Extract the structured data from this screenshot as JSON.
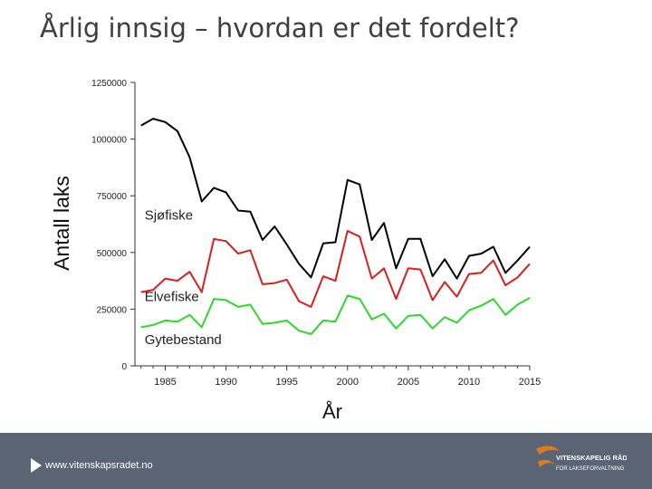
{
  "slide": {
    "title": "Årlig innsig – hvordan er det fordelt?"
  },
  "footer": {
    "url": "www.vitenskapsradet.no",
    "logo_line1": "VITENSKAPELIG RÅD",
    "logo_line2": "FOR LAKSEFORVALTNING",
    "background_color": "#5a6475"
  },
  "chart_data": {
    "type": "line",
    "xlabel": "År",
    "ylabel": "Antall laks",
    "xlim": [
      1982.5,
      2015
    ],
    "ylim": [
      0,
      1250000
    ],
    "x_ticks": [
      1985,
      1990,
      1995,
      2000,
      2005,
      2010,
      2015
    ],
    "y_ticks": [
      0,
      250000,
      500000,
      750000,
      1000000,
      1250000
    ],
    "y_tick_labels": [
      "0",
      "250000",
      "500000",
      "750000",
      "1000000",
      "1250000"
    ],
    "grid": false,
    "legend": "inline labels",
    "x": [
      1983,
      1984,
      1985,
      1986,
      1987,
      1988,
      1989,
      1990,
      1991,
      1992,
      1993,
      1994,
      1995,
      1996,
      1997,
      1998,
      1999,
      2000,
      2001,
      2002,
      2003,
      2004,
      2005,
      2006,
      2007,
      2008,
      2009,
      2010,
      2011,
      2012,
      2013,
      2014,
      2015
    ],
    "series": [
      {
        "name": "Sjøfiske",
        "color": "#000000",
        "label_x": 1983.3,
        "label_y": 645000,
        "values": [
          1060000,
          1090000,
          1075000,
          1035000,
          920000,
          725000,
          785000,
          765000,
          685000,
          680000,
          555000,
          615000,
          535000,
          450000,
          390000,
          540000,
          545000,
          820000,
          800000,
          555000,
          630000,
          430000,
          560000,
          560000,
          395000,
          470000,
          385000,
          485000,
          495000,
          525000,
          410000,
          465000,
          525000
        ]
      },
      {
        "name": "Elvefiske",
        "color": "#d62020",
        "label_x": 1983.3,
        "label_y": 285000,
        "values": [
          325000,
          335000,
          385000,
          375000,
          415000,
          325000,
          560000,
          550000,
          495000,
          510000,
          360000,
          365000,
          380000,
          285000,
          260000,
          395000,
          375000,
          595000,
          570000,
          385000,
          430000,
          295000,
          430000,
          425000,
          290000,
          370000,
          305000,
          405000,
          410000,
          465000,
          355000,
          390000,
          450000
        ]
      },
      {
        "name": "Gytebestand",
        "color": "#2fd62f",
        "label_x": 1983.3,
        "label_y": 95000,
        "values": [
          170000,
          180000,
          200000,
          195000,
          225000,
          170000,
          295000,
          290000,
          260000,
          270000,
          185000,
          190000,
          200000,
          155000,
          140000,
          200000,
          195000,
          310000,
          295000,
          205000,
          230000,
          165000,
          220000,
          225000,
          165000,
          215000,
          190000,
          245000,
          265000,
          295000,
          225000,
          270000,
          300000
        ]
      }
    ]
  }
}
